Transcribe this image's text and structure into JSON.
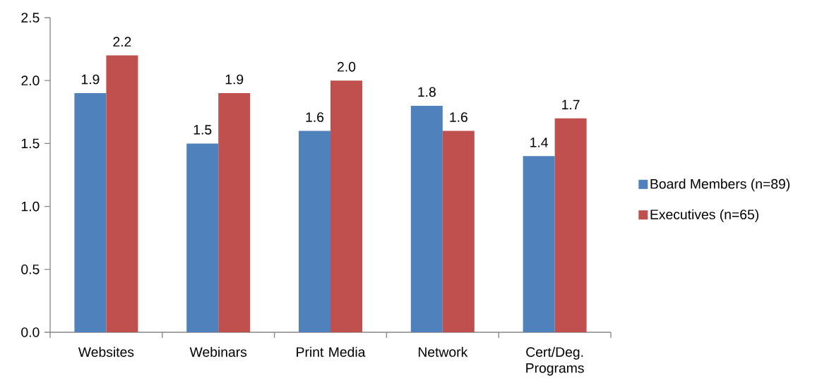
{
  "chart_data": {
    "type": "bar",
    "categories": [
      "Websites",
      "Webinars",
      "Print Media",
      "Network",
      "Cert/Deg. Programs"
    ],
    "series": [
      {
        "name": "Board Members (n=89)",
        "color": "#4f81bd",
        "values": [
          1.9,
          1.5,
          1.6,
          1.8,
          1.4
        ],
        "value_labels": [
          "1.9",
          "1.5",
          "1.6",
          "1.8",
          "1.4"
        ]
      },
      {
        "name": "Executives (n=65)",
        "color": "#c0504d",
        "values": [
          2.2,
          1.9,
          2.0,
          1.6,
          1.7
        ],
        "value_labels": [
          "2.2",
          "1.9",
          "2.0",
          "1.6",
          "1.7"
        ]
      }
    ],
    "ylim": [
      0,
      2.5
    ],
    "yticks": [
      {
        "value": 0,
        "label": "0.0"
      },
      0.5,
      {
        "value": 1,
        "label": "1.0"
      },
      1.5,
      {
        "value": 2,
        "label": "2.0"
      },
      2.5
    ],
    "legend": "right"
  }
}
